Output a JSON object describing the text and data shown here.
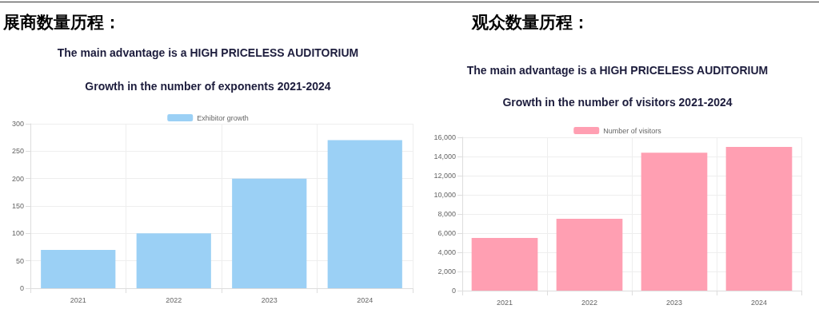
{
  "chart_data": [
    {
      "type": "bar",
      "title": "展商数量历程：",
      "subtitle": "The main advantage is a HIGH PRICELESS AUDITORIUM",
      "annotations": [
        "Growth in the number of exponents 2021-2024"
      ],
      "categories": [
        "2021",
        "2022",
        "2023",
        "2024"
      ],
      "series": [
        {
          "name": "Exhibitor growth",
          "color": "#9bd0f5",
          "values": [
            70,
            100,
            200,
            270
          ]
        }
      ],
      "ylim": [
        0,
        300
      ],
      "yticks": [
        0,
        50,
        100,
        150,
        200,
        250,
        300
      ],
      "grid": true,
      "legend": "top"
    },
    {
      "type": "bar",
      "title": "观众数量历程：",
      "subtitle": "The main advantage is a HIGH PRICELESS AUDITORIUM",
      "annotations": [
        "Growth in the number of visitors 2021-2024"
      ],
      "categories": [
        "2021",
        "2022",
        "2023",
        "2024"
      ],
      "series": [
        {
          "name": "Number of visitors",
          "color": "#ff9fb2",
          "values": [
            5500,
            7500,
            14400,
            15000
          ]
        }
      ],
      "ylim": [
        0,
        16000
      ],
      "yticks": [
        0,
        {
          "value": 2000,
          "label": "2,000"
        },
        {
          "value": 4000,
          "label": "4,000"
        },
        {
          "value": 6000,
          "label": "6,000"
        },
        {
          "value": 8000,
          "label": "8,000"
        },
        {
          "value": 10000,
          "label": "10,000"
        },
        {
          "value": 12000,
          "label": "12,000"
        },
        {
          "value": 14000,
          "label": "14,000"
        },
        {
          "value": 16000,
          "label": "16,000"
        }
      ],
      "grid": true,
      "legend": "top"
    }
  ]
}
